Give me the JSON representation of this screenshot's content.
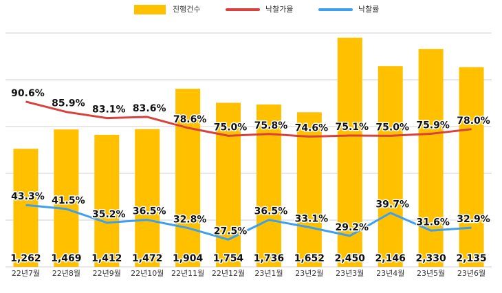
{
  "chart_data": {
    "type": "bar",
    "categories": [
      "22년7월",
      "22년8월",
      "22년9월",
      "22년10월",
      "22년11월",
      "22년12월",
      "23년1월",
      "23년2월",
      "23년3월",
      "23년4월",
      "23년5월",
      "23년6월"
    ],
    "series": [
      {
        "name": "진행건수",
        "type": "bar",
        "color": "#ffc000",
        "values": [
          1262,
          1469,
          1412,
          1472,
          1904,
          1754,
          1736,
          1652,
          2450,
          2146,
          2330,
          2135
        ],
        "value_labels": [
          "1,262",
          "1,469",
          "1,412",
          "1,472",
          "1,904",
          "1,754",
          "1,736",
          "1,652",
          "2,450",
          "2,146",
          "2,330",
          "2,135"
        ]
      },
      {
        "name": "낙찰가율",
        "type": "line",
        "axis": "y2",
        "color": "#d9413c",
        "values": [
          90.6,
          85.9,
          83.1,
          83.6,
          78.6,
          75.0,
          75.8,
          74.6,
          75.1,
          75.0,
          75.9,
          78.0
        ],
        "value_labels": [
          "90.6%",
          "85.9%",
          "83.1%",
          "83.6%",
          "78.6%",
          "75.0%",
          "75.8%",
          "74.6%",
          "75.1%",
          "75.0%",
          "75.9%",
          "78.0%"
        ]
      },
      {
        "name": "낙찰률",
        "type": "line",
        "axis": "y2",
        "color": "#3d9ff0",
        "values": [
          43.3,
          41.5,
          35.2,
          36.5,
          32.8,
          27.5,
          36.5,
          33.1,
          29.2,
          39.7,
          31.6,
          32.9
        ],
        "value_labels": [
          "43.3%",
          "41.5%",
          "35.2%",
          "36.5%",
          "32.8%",
          "27.5%",
          "36.5%",
          "33.1%",
          "29.2%",
          "39.7%",
          "31.6%",
          "32.9%"
        ]
      }
    ],
    "ylim": [
      0,
      2500
    ],
    "yticks": [
      0,
      500,
      1000,
      1500,
      2000,
      2500
    ],
    "y2lim": [
      15,
      122
    ],
    "grid": true,
    "legend": "top"
  }
}
